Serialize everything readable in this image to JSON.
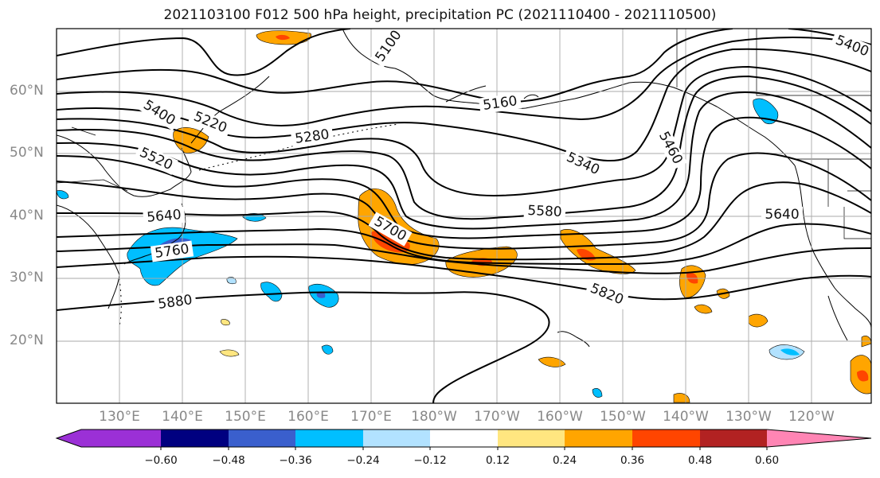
{
  "title": "2021103100 F012 500 hPa height, precipitation PC (2021110400 - 2021110500)",
  "map": {
    "lat_labels": [
      "60°N",
      "50°N",
      "40°N",
      "30°N",
      "20°N"
    ],
    "lon_labels": [
      "130°E",
      "140°E",
      "150°E",
      "160°E",
      "170°E",
      "180°W",
      "170°W",
      "160°W",
      "150°W",
      "140°W",
      "130°W",
      "120°W"
    ],
    "contour_labels": [
      "5100",
      "5160",
      "5220",
      "5280",
      "5340",
      "5400",
      "5460",
      "5520",
      "5580",
      "5640",
      "5640",
      "5700",
      "5760",
      "5820",
      "5880",
      "5400"
    ],
    "contour_color": "#000000",
    "ocean_color": "#ffffff",
    "grid_color": "#aaaaaa"
  },
  "colorbar": {
    "tick_labels": [
      "-0.60",
      "-0.48",
      "-0.36",
      "-0.24",
      "-0.12",
      "0.12",
      "0.24",
      "0.36",
      "0.48",
      "0.60"
    ],
    "colors": [
      "#9b30d6",
      "#000080",
      "#3a5fcd",
      "#00bfff",
      "#b2e2ff",
      "#ffffff",
      "#ffe680",
      "#ffa500",
      "#ff4500",
      "#b22222",
      "#ff85b4"
    ]
  }
}
